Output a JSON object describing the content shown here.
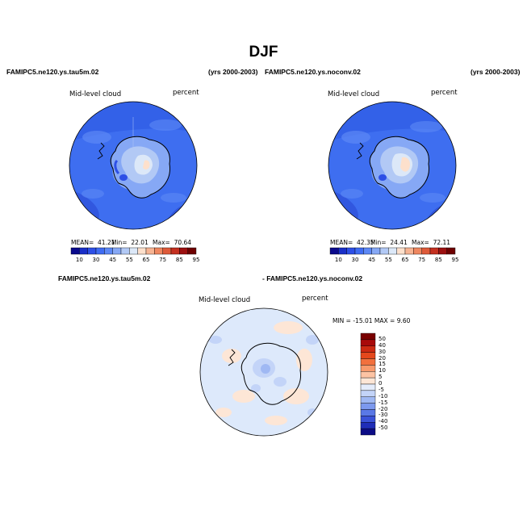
{
  "page_title": "DJF",
  "panels": [
    {
      "case_name": "FAMIPC5.ne120.ys.tau5m.02",
      "years": "(yrs 2000-2003)",
      "variable": "Mid-level cloud",
      "units": "percent",
      "stats": {
        "mean_label": "MEAN=",
        "mean": "41.21",
        "min_label": "Min=",
        "min": "22.01",
        "max_label": "Max=",
        "max": "70.64"
      },
      "colorbar": {
        "ticks": [
          "10",
          "30",
          "45",
          "55",
          "65",
          "75",
          "85",
          "95"
        ],
        "colors": [
          "#0a0a8c",
          "#1a2fc8",
          "#2d4fe6",
          "#3f6cf2",
          "#5d88f5",
          "#86a8f5",
          "#b2c9f5",
          "#dce8f8",
          "#fde0cc",
          "#f7b493",
          "#ef8760",
          "#de5a39",
          "#c43020",
          "#9c1010",
          "#6e0000"
        ]
      }
    },
    {
      "case_name": "FAMIPC5.ne120.ys.noconv.02",
      "years": "(yrs 2000-2003)",
      "variable": "Mid-level cloud",
      "units": "percent",
      "stats": {
        "mean_label": "MEAN=",
        "mean": "42.35",
        "min_label": "Min=",
        "min": "24.41",
        "max_label": "Max=",
        "max": "72.11"
      },
      "colorbar": {
        "ticks": [
          "10",
          "30",
          "45",
          "55",
          "65",
          "75",
          "85",
          "95"
        ],
        "colors": [
          "#0a0a8c",
          "#1a2fc8",
          "#2d4fe6",
          "#3f6cf2",
          "#5d88f5",
          "#86a8f5",
          "#b2c9f5",
          "#dce8f8",
          "#fde0cc",
          "#f7b493",
          "#ef8760",
          "#de5a39",
          "#c43020",
          "#9c1010",
          "#6e0000"
        ]
      }
    }
  ],
  "difference": {
    "case_a": "FAMIPC5.ne120.ys.tau5m.02",
    "case_b": "- FAMIPC5.ne120.ys.noconv.02",
    "variable": "Mid-level cloud",
    "units": "percent",
    "min_max": "MIN = -15.01  MAX =   9.60",
    "colorbar": {
      "ticks": [
        "50",
        "40",
        "30",
        "20",
        "15",
        "10",
        "5",
        "0",
        "-5",
        "-10",
        "-15",
        "-20",
        "-30",
        "-40",
        "-50"
      ],
      "colors": [
        "#7a0000",
        "#a80a0a",
        "#cc2a12",
        "#e4481c",
        "#f2703d",
        "#f89a6c",
        "#fcc3a3",
        "#fde6d6",
        "#e4ecfb",
        "#c3d4f8",
        "#9fb8f3",
        "#7c99ee",
        "#5a78e6",
        "#3a52d8",
        "#1f2db8",
        "#0c0c86"
      ]
    }
  },
  "colors": {
    "ocean_blue": "#3e6ef0",
    "land_light": "#c9d9f7",
    "diff_background": "#dde9fb"
  }
}
